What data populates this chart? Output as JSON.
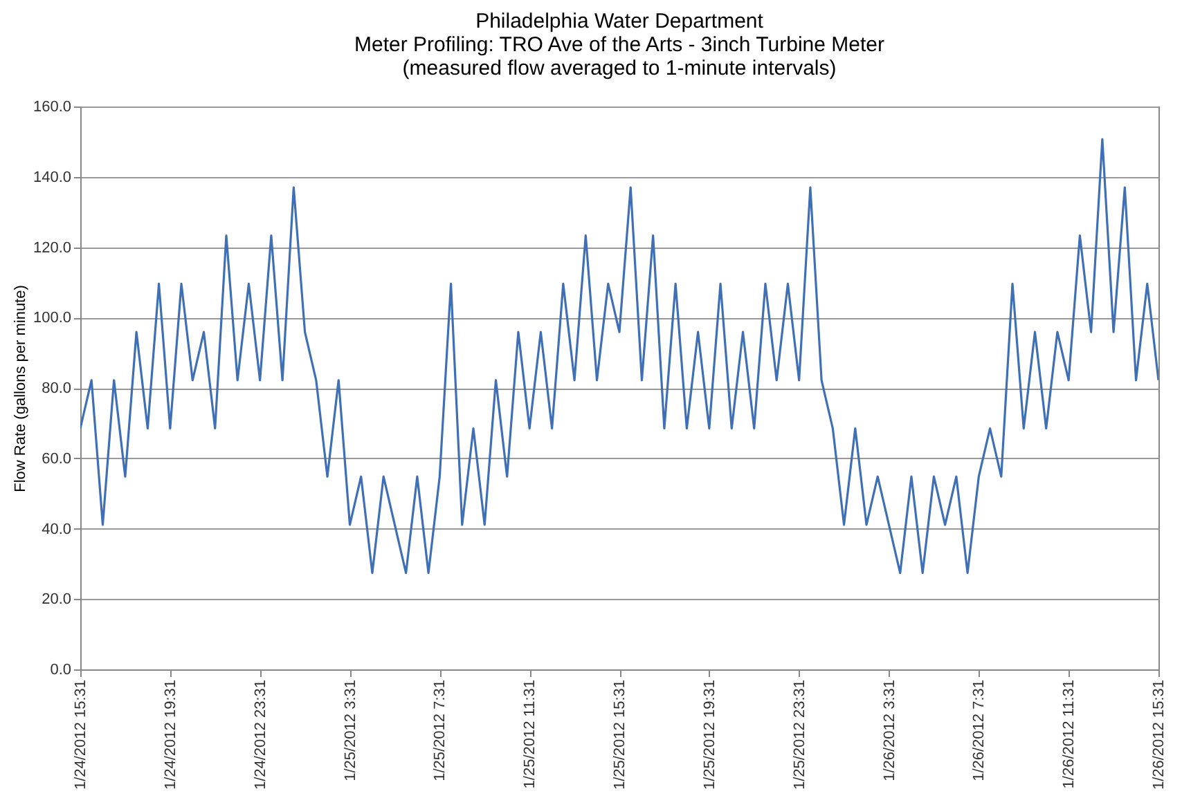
{
  "chart_data": {
    "type": "line",
    "title": "Philadelphia Water Department",
    "subtitle": "Meter Profiling: TRO Ave of the Arts - 3inch Turbine Meter\n(measured flow averaged to 1-minute intervals)",
    "ylabel": "Flow Rate (gallons per minute)",
    "grid": "y",
    "legend": false,
    "xlim": [
      "2012-01-24T15:31",
      "2012-01-26T15:31"
    ],
    "xticks": [
      {
        "value": "2012-01-24T15:31",
        "label": "1/24/2012 15:31"
      },
      {
        "value": "2012-01-24T19:31",
        "label": "1/24/2012 19:31"
      },
      {
        "value": "2012-01-24T23:31",
        "label": "1/24/2012 23:31"
      },
      {
        "value": "2012-01-25T03:31",
        "label": "1/25/2012 3:31"
      },
      {
        "value": "2012-01-25T07:31",
        "label": "1/25/2012 7:31"
      },
      {
        "value": "2012-01-25T11:31",
        "label": "1/25/2012 11:31"
      },
      {
        "value": "2012-01-25T15:31",
        "label": "1/25/2012 15:31"
      },
      {
        "value": "2012-01-25T19:31",
        "label": "1/25/2012 19:31"
      },
      {
        "value": "2012-01-25T23:31",
        "label": "1/25/2012 23:31"
      },
      {
        "value": "2012-01-26T03:31",
        "label": "1/26/2012 3:31"
      },
      {
        "value": "2012-01-26T07:31",
        "label": "1/26/2012 7:31"
      },
      {
        "value": "2012-01-26T11:31",
        "label": "1/26/2012 11:31"
      },
      {
        "value": "2012-01-26T15:31",
        "label": "1/26/2012 15:31"
      }
    ],
    "ylim": [
      0,
      160
    ],
    "yticks": [
      {
        "value": 0,
        "label": "0.0"
      },
      {
        "value": 20,
        "label": "20.0"
      },
      {
        "value": 40,
        "label": "40.0"
      },
      {
        "value": 60,
        "label": "60.0"
      },
      {
        "value": 80,
        "label": "80.0"
      },
      {
        "value": 100,
        "label": "100.0"
      },
      {
        "value": 120,
        "label": "120.0"
      },
      {
        "value": 140,
        "label": "140.0"
      },
      {
        "value": 160,
        "label": "160.0"
      }
    ],
    "x": [
      "2012-01-24T15:31",
      "2012-01-24T16:01",
      "2012-01-24T16:31",
      "2012-01-24T17:01",
      "2012-01-24T17:31",
      "2012-01-24T18:01",
      "2012-01-24T18:31",
      "2012-01-24T19:01",
      "2012-01-24T19:31",
      "2012-01-24T20:01",
      "2012-01-24T20:31",
      "2012-01-24T21:01",
      "2012-01-24T21:31",
      "2012-01-24T22:01",
      "2012-01-24T22:31",
      "2012-01-24T23:01",
      "2012-01-24T23:31",
      "2012-01-25T00:01",
      "2012-01-25T00:31",
      "2012-01-25T01:01",
      "2012-01-25T01:31",
      "2012-01-25T02:01",
      "2012-01-25T02:31",
      "2012-01-25T03:01",
      "2012-01-25T03:31",
      "2012-01-25T04:01",
      "2012-01-25T04:31",
      "2012-01-25T05:01",
      "2012-01-25T05:31",
      "2012-01-25T06:01",
      "2012-01-25T06:31",
      "2012-01-25T07:01",
      "2012-01-25T07:31",
      "2012-01-25T08:01",
      "2012-01-25T08:31",
      "2012-01-25T09:01",
      "2012-01-25T09:31",
      "2012-01-25T10:01",
      "2012-01-25T10:31",
      "2012-01-25T11:01",
      "2012-01-25T11:31",
      "2012-01-25T12:01",
      "2012-01-25T12:31",
      "2012-01-25T13:01",
      "2012-01-25T13:31",
      "2012-01-25T14:01",
      "2012-01-25T14:31",
      "2012-01-25T15:01",
      "2012-01-25T15:31",
      "2012-01-25T16:01",
      "2012-01-25T16:31",
      "2012-01-25T17:01",
      "2012-01-25T17:31",
      "2012-01-25T18:01",
      "2012-01-25T18:31",
      "2012-01-25T19:01",
      "2012-01-25T19:31",
      "2012-01-25T20:01",
      "2012-01-25T20:31",
      "2012-01-25T21:01",
      "2012-01-25T21:31",
      "2012-01-25T22:01",
      "2012-01-25T22:31",
      "2012-01-25T23:01",
      "2012-01-25T23:31",
      "2012-01-26T00:01",
      "2012-01-26T00:31",
      "2012-01-26T01:01",
      "2012-01-26T01:31",
      "2012-01-26T02:01",
      "2012-01-26T02:31",
      "2012-01-26T03:01",
      "2012-01-26T03:31",
      "2012-01-26T04:01",
      "2012-01-26T04:31",
      "2012-01-26T05:01",
      "2012-01-26T05:31",
      "2012-01-26T06:01",
      "2012-01-26T06:31",
      "2012-01-26T07:01",
      "2012-01-26T07:31",
      "2012-01-26T08:01",
      "2012-01-26T08:31",
      "2012-01-26T09:01",
      "2012-01-26T09:31",
      "2012-01-26T10:01",
      "2012-01-26T10:31",
      "2012-01-26T11:01",
      "2012-01-26T11:31",
      "2012-01-26T12:01",
      "2012-01-26T12:31",
      "2012-01-26T13:01",
      "2012-01-26T13:31",
      "2012-01-26T14:01",
      "2012-01-26T14:31",
      "2012-01-26T15:01",
      "2012-01-26T15:31"
    ],
    "series": [
      {
        "color": "#3f6fb5",
        "values": [
          68.5,
          82.2,
          41.1,
          82.2,
          54.8,
          95.9,
          68.5,
          109.6,
          68.5,
          109.6,
          82.2,
          95.9,
          68.5,
          123.3,
          82.2,
          109.6,
          82.2,
          123.3,
          82.2,
          137,
          95.9,
          82.2,
          54.8,
          82.2,
          41.1,
          54.8,
          27.4,
          54.8,
          41.1,
          27.4,
          54.8,
          27.4,
          54.8,
          109.6,
          41.1,
          68.5,
          41.1,
          82.2,
          54.8,
          95.9,
          68.5,
          95.9,
          68.5,
          109.6,
          82.2,
          123.3,
          82.2,
          109.6,
          95.9,
          137,
          82.2,
          123.3,
          68.5,
          109.6,
          68.5,
          95.9,
          68.5,
          109.6,
          68.5,
          95.9,
          68.5,
          109.6,
          82.2,
          109.6,
          82.2,
          137,
          82.2,
          68.5,
          41.1,
          68.5,
          41.1,
          54.8,
          41.1,
          27.4,
          54.8,
          27.4,
          54.8,
          41.1,
          54.8,
          27.4,
          54.8,
          68.5,
          54.8,
          109.6,
          68.5,
          95.9,
          68.5,
          95.9,
          82.2,
          123.3,
          95.9,
          150.7,
          95.9,
          137,
          82.2,
          109.6,
          82.2
        ]
      }
    ]
  }
}
